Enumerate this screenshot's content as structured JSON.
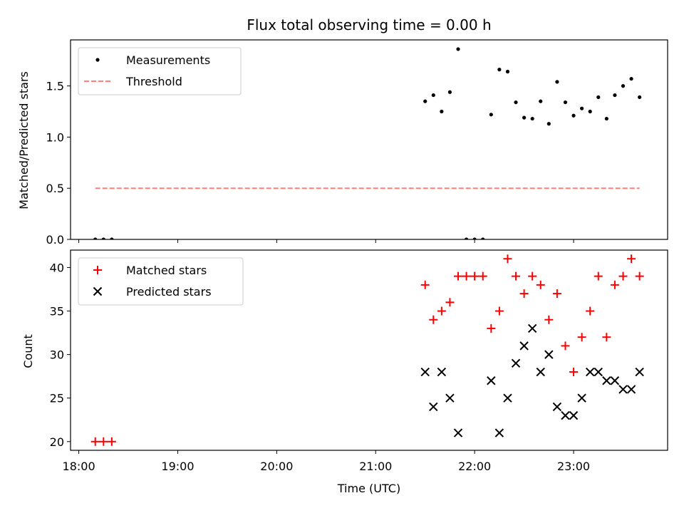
{
  "chart_data": [
    {
      "type": "scatter",
      "title": "Flux total observing time = 0.00 h",
      "xlabel": "",
      "ylabel": "Matched/Predicted stars",
      "ylim": [
        0,
        1.95
      ],
      "yticks": [
        0.0,
        0.5,
        1.0,
        1.5
      ],
      "ytick_labels": [
        "0.0",
        "0.5",
        "1.0",
        "1.5"
      ],
      "legend_position": "top-left",
      "series": [
        {
          "name": "Measurements",
          "marker": "dot",
          "color": "#000000",
          "points": [
            [
              "18:10",
              0.0
            ],
            [
              "18:15",
              0.0
            ],
            [
              "18:20",
              0.0
            ],
            [
              "21:30",
              1.35
            ],
            [
              "21:35",
              1.41
            ],
            [
              "21:40",
              1.25
            ],
            [
              "21:45",
              1.44
            ],
            [
              "21:50",
              1.86
            ],
            [
              "21:55",
              0.0
            ],
            [
              "22:00",
              0.0
            ],
            [
              "22:05",
              0.0
            ],
            [
              "22:10",
              1.22
            ],
            [
              "22:15",
              1.66
            ],
            [
              "22:20",
              1.64
            ],
            [
              "22:25",
              1.34
            ],
            [
              "22:30",
              1.19
            ],
            [
              "22:35",
              1.18
            ],
            [
              "22:40",
              1.35
            ],
            [
              "22:45",
              1.13
            ],
            [
              "22:50",
              1.54
            ],
            [
              "22:55",
              1.34
            ],
            [
              "23:00",
              1.21
            ],
            [
              "23:05",
              1.28
            ],
            [
              "23:10",
              1.25
            ],
            [
              "23:15",
              1.39
            ],
            [
              "23:20",
              1.18
            ],
            [
              "23:25",
              1.41
            ],
            [
              "23:30",
              1.5
            ],
            [
              "23:35",
              1.57
            ],
            [
              "23:40",
              1.39
            ]
          ]
        },
        {
          "name": "Threshold",
          "marker": "dashed-line",
          "color": "#ff7f7f",
          "points": [
            [
              "18:10",
              0.5
            ],
            [
              "23:40",
              0.5
            ]
          ]
        }
      ]
    },
    {
      "type": "scatter",
      "title": "",
      "xlabel": "Time (UTC)",
      "ylabel": "Count",
      "ylim": [
        19,
        42
      ],
      "yticks": [
        20,
        25,
        30,
        35,
        40
      ],
      "ytick_labels": [
        "20",
        "25",
        "30",
        "35",
        "40"
      ],
      "xlim": [
        "17:55",
        "23:57"
      ],
      "xticks": [
        "18:00",
        "19:00",
        "20:00",
        "21:00",
        "22:00",
        "23:00"
      ],
      "xtick_labels": [
        "18:00",
        "19:00",
        "20:00",
        "21:00",
        "22:00",
        "23:00"
      ],
      "legend_position": "top-left",
      "series": [
        {
          "name": "Matched stars",
          "marker": "plus",
          "color": "#ff0000",
          "points": [
            [
              "18:10",
              20
            ],
            [
              "18:15",
              20
            ],
            [
              "18:20",
              20
            ],
            [
              "21:30",
              38
            ],
            [
              "21:35",
              34
            ],
            [
              "21:40",
              35
            ],
            [
              "21:45",
              36
            ],
            [
              "21:50",
              39
            ],
            [
              "21:55",
              39
            ],
            [
              "22:00",
              39
            ],
            [
              "22:05",
              39
            ],
            [
              "22:10",
              33
            ],
            [
              "22:15",
              35
            ],
            [
              "22:20",
              41
            ],
            [
              "22:25",
              39
            ],
            [
              "22:30",
              37
            ],
            [
              "22:35",
              39
            ],
            [
              "22:40",
              38
            ],
            [
              "22:45",
              34
            ],
            [
              "22:50",
              37
            ],
            [
              "22:55",
              31
            ],
            [
              "23:00",
              28
            ],
            [
              "23:05",
              32
            ],
            [
              "23:10",
              35
            ],
            [
              "23:15",
              39
            ],
            [
              "23:20",
              32
            ],
            [
              "23:25",
              38
            ],
            [
              "23:30",
              39
            ],
            [
              "23:35",
              41
            ],
            [
              "23:40",
              39
            ]
          ]
        },
        {
          "name": "Predicted stars",
          "marker": "x",
          "color": "#000000",
          "points": [
            [
              "21:30",
              28
            ],
            [
              "21:35",
              24
            ],
            [
              "21:40",
              28
            ],
            [
              "21:45",
              25
            ],
            [
              "21:50",
              21
            ],
            [
              "22:10",
              27
            ],
            [
              "22:15",
              21
            ],
            [
              "22:20",
              25
            ],
            [
              "22:25",
              29
            ],
            [
              "22:30",
              31
            ],
            [
              "22:35",
              33
            ],
            [
              "22:40",
              28
            ],
            [
              "22:45",
              30
            ],
            [
              "22:50",
              24
            ],
            [
              "22:55",
              23
            ],
            [
              "23:00",
              23
            ],
            [
              "23:05",
              25
            ],
            [
              "23:10",
              28
            ],
            [
              "23:15",
              28
            ],
            [
              "23:20",
              27
            ],
            [
              "23:25",
              27
            ],
            [
              "23:30",
              26
            ],
            [
              "23:35",
              26
            ],
            [
              "23:40",
              28
            ]
          ]
        }
      ]
    }
  ]
}
